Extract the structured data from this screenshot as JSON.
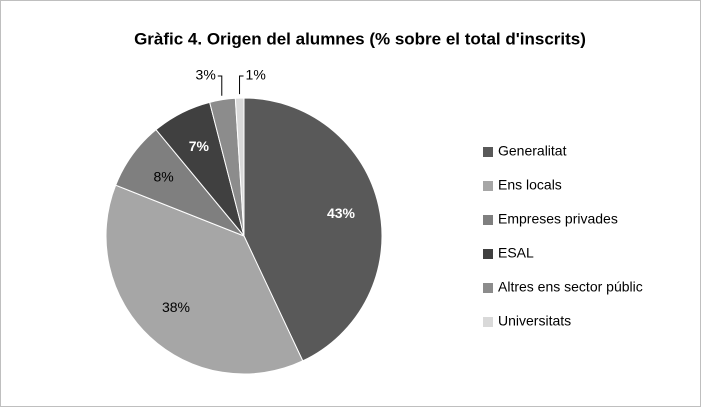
{
  "chart_data": {
    "type": "pie",
    "title": "Gràfic 4. Origen del alumnes (% sobre el total d'inscrits)",
    "categories": [
      "Generalitat",
      "Ens locals",
      "Empreses privades",
      "ESAL",
      "Altres ens sector públic",
      "Universitats"
    ],
    "values": [
      43,
      38,
      8,
      7,
      3,
      1
    ],
    "value_labels": [
      "43%",
      "38%",
      "8%",
      "7%",
      "3%",
      "1%"
    ],
    "colors": [
      "#595959",
      "#a6a6a6",
      "#7f7f7f",
      "#404040",
      "#8c8c8c",
      "#d9d9d9"
    ],
    "legend": "right"
  }
}
